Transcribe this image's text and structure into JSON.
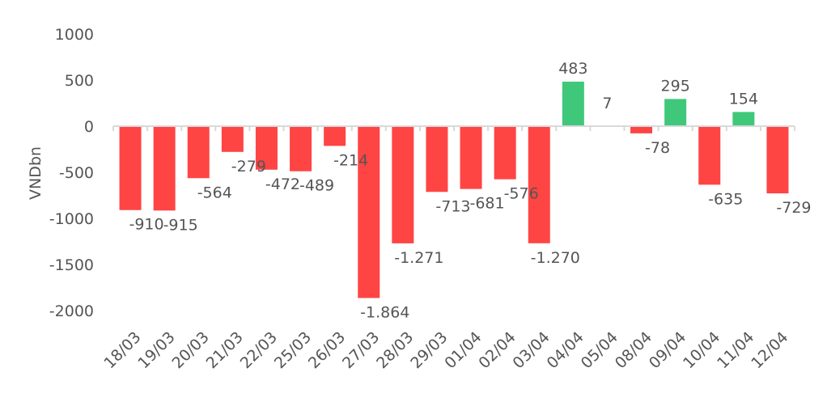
{
  "chart_data": {
    "type": "bar",
    "title": "",
    "xlabel": "",
    "ylabel": "VNDbn",
    "ylim": [
      -2000,
      1000
    ],
    "yticks": [
      1000,
      500,
      0,
      -500,
      -1000,
      -1500,
      -2000
    ],
    "ytick_labels": [
      "1000",
      "500",
      "0",
      "-500",
      "-1000",
      "-1500",
      "-2000"
    ],
    "categories": [
      "18/03",
      "19/03",
      "20/03",
      "21/03",
      "22/03",
      "25/03",
      "26/03",
      "27/03",
      "28/03",
      "29/03",
      "01/04",
      "02/04",
      "03/04",
      "04/04",
      "05/04",
      "08/04",
      "09/04",
      "10/04",
      "11/04",
      "12/04"
    ],
    "values": [
      -910,
      -915,
      -564,
      -279,
      -472,
      -489,
      -214,
      -1864,
      -1271,
      -713,
      -681,
      -576,
      -1270,
      483,
      7,
      -78,
      295,
      -635,
      154,
      -729
    ],
    "data_labels": [
      "-910",
      "-915",
      "-564",
      "-279",
      "-472",
      "-489",
      "-214",
      "-1.864",
      "-1.271",
      "-713",
      "-681",
      "-576",
      "-1.270",
      "483",
      "7",
      "-78",
      "295",
      "-635",
      "154",
      "-729"
    ],
    "colors": {
      "positive": "#3fc87a",
      "negative": "#ff4444",
      "axis": "#d9d9d9",
      "text": "#555555"
    },
    "grid": false,
    "legend": "none"
  }
}
